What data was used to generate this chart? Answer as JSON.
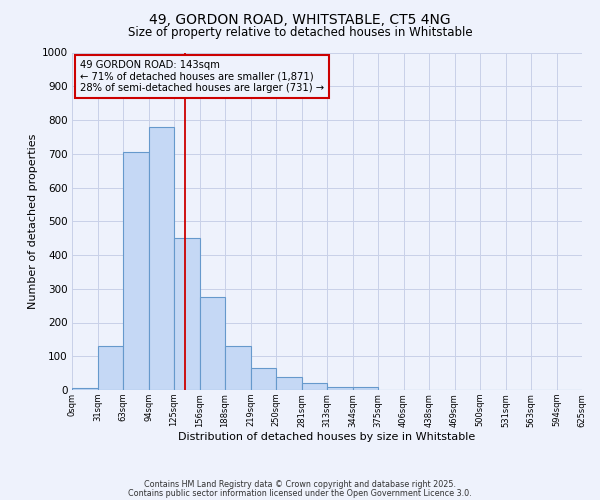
{
  "title1": "49, GORDON ROAD, WHITSTABLE, CT5 4NG",
  "title2": "Size of property relative to detached houses in Whitstable",
  "xlabel": "Distribution of detached houses by size in Whitstable",
  "ylabel": "Number of detached properties",
  "bar_values": [
    5,
    130,
    705,
    780,
    450,
    275,
    130,
    65,
    40,
    22,
    10,
    10,
    0,
    0,
    0,
    0,
    0,
    0,
    0,
    0
  ],
  "bar_labels": [
    "0sqm",
    "31sqm",
    "63sqm",
    "94sqm",
    "125sqm",
    "156sqm",
    "188sqm",
    "219sqm",
    "250sqm",
    "281sqm",
    "313sqm",
    "344sqm",
    "375sqm",
    "406sqm",
    "438sqm",
    "469sqm",
    "500sqm",
    "531sqm",
    "563sqm",
    "594sqm",
    "625sqm"
  ],
  "bar_color": "#c5d8f5",
  "bar_edge_color": "#6699cc",
  "vline_x": 4.43,
  "vline_color": "#cc0000",
  "annotation_line1": "49 GORDON ROAD: 143sqm",
  "annotation_line2": "← 71% of detached houses are smaller (1,871)",
  "annotation_line3": "28% of semi-detached houses are larger (731) →",
  "annotation_box_color": "#cc0000",
  "ylim": [
    0,
    1000
  ],
  "yticks": [
    0,
    100,
    200,
    300,
    400,
    500,
    600,
    700,
    800,
    900,
    1000
  ],
  "grid_color": "#c8d0e8",
  "background_color": "#eef2fc",
  "footnote1": "Contains HM Land Registry data © Crown copyright and database right 2025.",
  "footnote2": "Contains public sector information licensed under the Open Government Licence 3.0."
}
